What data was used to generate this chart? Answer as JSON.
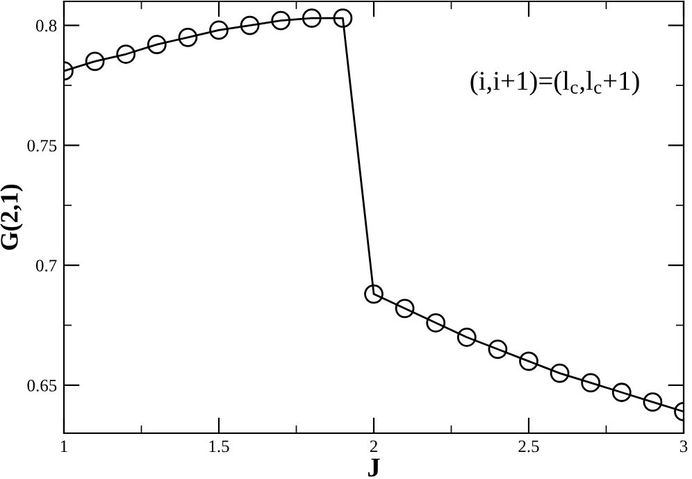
{
  "chart_data": {
    "type": "line",
    "xlabel": "J",
    "ylabel": "G(2,1)",
    "annotations": [
      "(i,i+1)=(l$_{c}$,l$_{c}$+1)"
    ],
    "x": [
      1.0,
      1.1,
      1.2,
      1.3,
      1.4,
      1.5,
      1.6,
      1.7,
      1.8,
      1.9,
      2.0,
      2.1,
      2.2,
      2.3,
      2.4,
      2.5,
      2.6,
      2.7,
      2.8,
      2.9,
      3.0
    ],
    "series": [
      {
        "color": "#000000",
        "values": [
          0.781,
          0.785,
          0.788,
          0.792,
          0.795,
          0.798,
          0.8,
          0.802,
          0.803,
          0.803,
          0.688,
          0.682,
          0.676,
          0.67,
          0.665,
          0.66,
          0.655,
          0.651,
          0.647,
          0.643,
          0.639
        ]
      }
    ],
    "marker": "circle",
    "line_style": "solid",
    "grid": false,
    "legend": false,
    "xlim": [
      1,
      3
    ],
    "ylim": [
      0.63,
      0.81
    ],
    "xticks": [
      1,
      1.5,
      2,
      2.5,
      3
    ],
    "yticks": [
      0.65,
      0.7,
      0.75,
      0.8
    ]
  }
}
